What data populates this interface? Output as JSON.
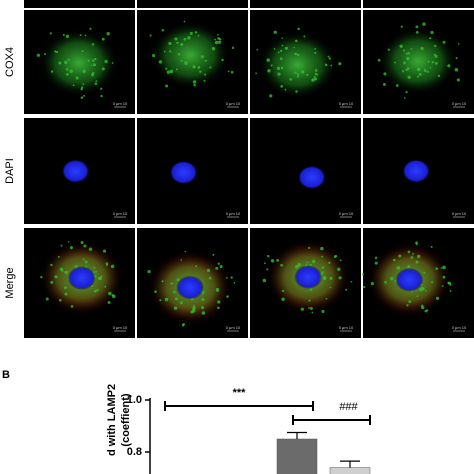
{
  "figure": {
    "row_labels": [
      "COX4",
      "DAPI",
      "Merge"
    ],
    "scale_bar": "0 μm 10",
    "panel_label": "B"
  },
  "chart_data": {
    "type": "bar",
    "y_label": [
      "d with LAMP2",
      "(coeffient)"
    ],
    "categories": [
      null,
      null,
      null,
      null
    ],
    "values": [
      null,
      null,
      0.85,
      0.74
    ],
    "errors": [
      null,
      null,
      0.025,
      0.025
    ],
    "colors": [
      "#6b6b6b",
      "#6b6b6b",
      "#6b6b6b",
      "#cfcfcf"
    ],
    "ylim": [
      0.72,
      1.0
    ],
    "yticks": [
      {
        "value": 1.0,
        "label": "1.0"
      },
      {
        "value": 0.8,
        "label": "0.8"
      }
    ],
    "annotations": [
      "***",
      "###"
    ]
  }
}
